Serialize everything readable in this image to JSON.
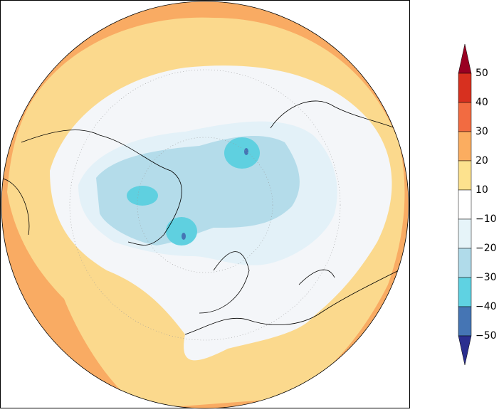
{
  "colorbar": {
    "labels": [
      "50",
      "40",
      "30",
      "20",
      "10",
      "−10",
      "−20",
      "−30",
      "−40",
      "−50"
    ],
    "colors": [
      "#990022",
      "#d7301f",
      "#f26b41",
      "#fbad60",
      "#fde28e",
      "#ffffff",
      "#e6f4f9",
      "#b0dbea",
      "#5fd2e2",
      "#4575b4",
      "#2b2f8f"
    ]
  }
}
